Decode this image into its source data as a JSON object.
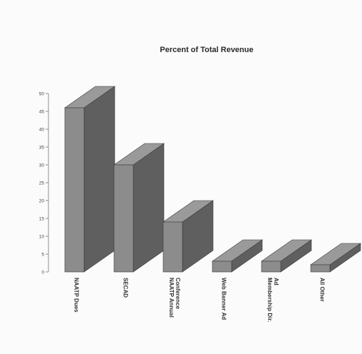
{
  "chart_data": {
    "type": "bar",
    "title": "Percent of Total Revenue",
    "categories": [
      [
        "NAATP Dues"
      ],
      [
        "SECAD"
      ],
      [
        "NAATP Annual",
        "Conference"
      ],
      [
        "Web Banner Ad"
      ],
      [
        "Membership Dir.",
        "Ad"
      ],
      [
        "All Other"
      ]
    ],
    "values": [
      46,
      30,
      14,
      3,
      3,
      2
    ],
    "ylim": [
      0,
      50
    ],
    "yticks": [
      0,
      5,
      10,
      15,
      20,
      25,
      30,
      35,
      40,
      45,
      50
    ],
    "xlabel": "",
    "ylabel": "",
    "grid": false,
    "colors": {
      "front": "#8c8c8c",
      "top": "#9a9a9a",
      "side": "#5f5f5f",
      "edge": "#3a3a3a"
    }
  }
}
